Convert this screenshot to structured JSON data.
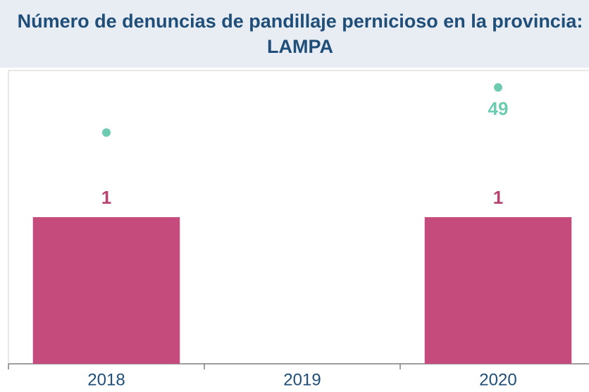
{
  "chart_data": {
    "type": "bar",
    "title": "Número de denuncias de pandillaje pernicioso en la provincia: LAMPA",
    "categories": [
      "2018",
      "2019",
      "2020"
    ],
    "series": [
      {
        "type": "bar",
        "color": "#c44b7b",
        "values": [
          1,
          null,
          1
        ]
      },
      {
        "type": "scatter",
        "axis": "y2",
        "color": "#6dcbb1",
        "values": [
          41,
          null,
          49
        ],
        "value_labels": [
          null,
          null,
          "49"
        ]
      }
    ],
    "ylim": [
      0,
      2
    ],
    "y2lim": [
      0,
      52
    ]
  }
}
